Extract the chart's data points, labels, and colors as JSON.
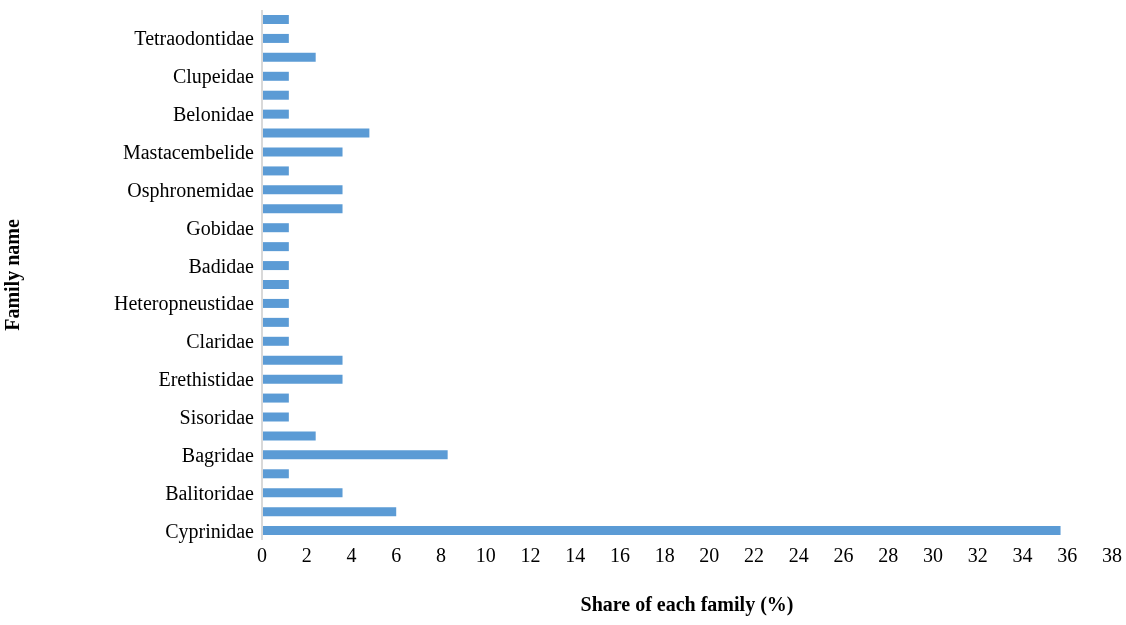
{
  "chart_data": {
    "type": "bar",
    "orientation": "horizontal",
    "xlabel": "Share of each family (%)",
    "ylabel": "Family name",
    "categories": [
      null,
      "Tetraodontidae",
      null,
      "Clupeidae",
      null,
      "Belonidae",
      null,
      "Mastacembelide",
      null,
      "Osphronemidae",
      null,
      "Gobidae",
      null,
      "Badidae",
      null,
      "Heteropneustidae",
      null,
      "Claridae",
      null,
      "Erethistidae",
      null,
      "Sisoridae",
      null,
      "Bagridae",
      null,
      "Balitoridae",
      null,
      "Cyprinidae"
    ],
    "values": [
      1.2,
      1.2,
      2.4,
      1.2,
      1.2,
      1.2,
      4.8,
      3.6,
      1.2,
      3.6,
      3.6,
      1.2,
      1.2,
      1.2,
      1.2,
      1.2,
      1.2,
      1.2,
      3.6,
      3.6,
      1.2,
      1.2,
      2.4,
      8.3,
      1.2,
      3.6,
      6.0,
      35.7
    ],
    "color": "#5b9bd5",
    "xlim": [
      0,
      38
    ],
    "xticks": [
      0,
      2,
      4,
      6,
      8,
      10,
      12,
      14,
      16,
      18,
      20,
      22,
      24,
      26,
      28,
      30,
      32,
      34,
      36,
      38
    ],
    "grid": false,
    "legend": false
  }
}
